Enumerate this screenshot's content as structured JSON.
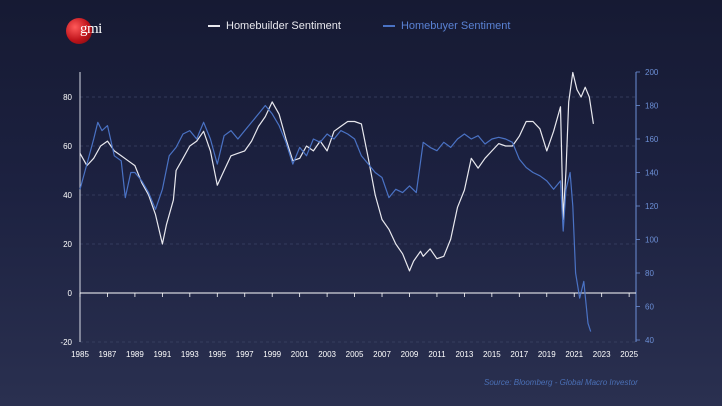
{
  "logo": {
    "text": "gmi"
  },
  "source": "Source: Bloomberg - Global Macro Investor",
  "colors": {
    "builder": "#e8e8ee",
    "buyer": "#4a72c4",
    "source": "#4a6fb5",
    "axis_left": "#ffffff",
    "axis_right": "#6c8fd6"
  },
  "chart_data": {
    "type": "line",
    "x_ticks": [
      "1985",
      "1987",
      "1989",
      "1991",
      "1993",
      "1995",
      "1997",
      "1999",
      "2001",
      "2003",
      "2005",
      "2007",
      "2009",
      "2011",
      "2013",
      "2015",
      "2017",
      "2019",
      "2021",
      "2023",
      "2025"
    ],
    "xlim": [
      1985,
      2025.5
    ],
    "y_left": {
      "ticks": [
        "80",
        "60",
        "40",
        "20",
        "0",
        "-20"
      ],
      "lim": [
        -20,
        90
      ]
    },
    "y_right": {
      "ticks": [
        "200",
        "180",
        "160",
        "140",
        "120",
        "100",
        "80",
        "60",
        "40"
      ],
      "lim": [
        40,
        200
      ]
    },
    "grid": "dashed horizontal at left-axis ticks",
    "series": [
      {
        "name": "Homebuilder Sentiment",
        "axis": "left",
        "points": [
          [
            1985,
            57
          ],
          [
            1985.5,
            52
          ],
          [
            1986,
            55
          ],
          [
            1986.5,
            60
          ],
          [
            1987,
            62
          ],
          [
            1987.5,
            58
          ],
          [
            1988,
            56
          ],
          [
            1988.5,
            54
          ],
          [
            1989,
            52
          ],
          [
            1989.5,
            45
          ],
          [
            1990,
            40
          ],
          [
            1990.5,
            32
          ],
          [
            1991,
            20
          ],
          [
            1991.3,
            28
          ],
          [
            1991.8,
            38
          ],
          [
            1992,
            50
          ],
          [
            1992.5,
            55
          ],
          [
            1993,
            60
          ],
          [
            1993.5,
            62
          ],
          [
            1994,
            66
          ],
          [
            1994.5,
            58
          ],
          [
            1995,
            44
          ],
          [
            1995.5,
            50
          ],
          [
            1996,
            56
          ],
          [
            1996.5,
            57
          ],
          [
            1997,
            58
          ],
          [
            1997.5,
            62
          ],
          [
            1998,
            68
          ],
          [
            1998.5,
            72
          ],
          [
            1999,
            78
          ],
          [
            1999.5,
            73
          ],
          [
            2000,
            63
          ],
          [
            2000.5,
            54
          ],
          [
            2001,
            55
          ],
          [
            2001.5,
            60
          ],
          [
            2002,
            58
          ],
          [
            2002.5,
            62
          ],
          [
            2003,
            58
          ],
          [
            2003.5,
            66
          ],
          [
            2004,
            68
          ],
          [
            2004.5,
            70
          ],
          [
            2005,
            70
          ],
          [
            2005.5,
            69
          ],
          [
            2006,
            55
          ],
          [
            2006.5,
            40
          ],
          [
            2007,
            30
          ],
          [
            2007.5,
            26
          ],
          [
            2008,
            20
          ],
          [
            2008.5,
            16
          ],
          [
            2009,
            9
          ],
          [
            2009.3,
            13
          ],
          [
            2009.8,
            17
          ],
          [
            2010,
            15
          ],
          [
            2010.5,
            18
          ],
          [
            2011,
            14
          ],
          [
            2011.5,
            15
          ],
          [
            2012,
            22
          ],
          [
            2012.5,
            35
          ],
          [
            2013,
            42
          ],
          [
            2013.5,
            55
          ],
          [
            2014,
            51
          ],
          [
            2014.5,
            55
          ],
          [
            2015,
            58
          ],
          [
            2015.5,
            61
          ],
          [
            2016,
            60
          ],
          [
            2016.5,
            60
          ],
          [
            2017,
            64
          ],
          [
            2017.5,
            70
          ],
          [
            2018,
            70
          ],
          [
            2018.5,
            67
          ],
          [
            2019,
            58
          ],
          [
            2019.5,
            66
          ],
          [
            2020,
            76
          ],
          [
            2020.2,
            30
          ],
          [
            2020.4,
            50
          ],
          [
            2020.6,
            78
          ],
          [
            2020.9,
            90
          ],
          [
            2021.2,
            83
          ],
          [
            2021.5,
            80
          ],
          [
            2021.8,
            84
          ],
          [
            2022.1,
            80
          ],
          [
            2022.4,
            69
          ]
        ]
      },
      {
        "name": "Homebuyer Sentiment",
        "axis": "right",
        "points": [
          [
            1985,
            130
          ],
          [
            1985.5,
            145
          ],
          [
            1986,
            160
          ],
          [
            1986.3,
            170
          ],
          [
            1986.6,
            165
          ],
          [
            1987,
            168
          ],
          [
            1987.5,
            150
          ],
          [
            1988,
            147
          ],
          [
            1988.3,
            125
          ],
          [
            1988.7,
            140
          ],
          [
            1989,
            140
          ],
          [
            1989.5,
            135
          ],
          [
            1990,
            128
          ],
          [
            1990.5,
            118
          ],
          [
            1991,
            130
          ],
          [
            1991.5,
            150
          ],
          [
            1992,
            155
          ],
          [
            1992.5,
            163
          ],
          [
            1993,
            165
          ],
          [
            1993.5,
            160
          ],
          [
            1994,
            170
          ],
          [
            1994.5,
            160
          ],
          [
            1995,
            145
          ],
          [
            1995.5,
            162
          ],
          [
            1996,
            165
          ],
          [
            1996.5,
            160
          ],
          [
            1997,
            165
          ],
          [
            1997.5,
            170
          ],
          [
            1998,
            175
          ],
          [
            1998.5,
            180
          ],
          [
            1999,
            175
          ],
          [
            1999.5,
            168
          ],
          [
            2000,
            158
          ],
          [
            2000.5,
            145
          ],
          [
            2001,
            155
          ],
          [
            2001.5,
            150
          ],
          [
            2002,
            160
          ],
          [
            2002.5,
            158
          ],
          [
            2003,
            163
          ],
          [
            2003.5,
            160
          ],
          [
            2004,
            165
          ],
          [
            2004.5,
            163
          ],
          [
            2005,
            160
          ],
          [
            2005.5,
            150
          ],
          [
            2006,
            145
          ],
          [
            2006.5,
            140
          ],
          [
            2007,
            137
          ],
          [
            2007.5,
            125
          ],
          [
            2008,
            130
          ],
          [
            2008.5,
            128
          ],
          [
            2009,
            132
          ],
          [
            2009.5,
            128
          ],
          [
            2010,
            158
          ],
          [
            2010.5,
            155
          ],
          [
            2011,
            153
          ],
          [
            2011.5,
            158
          ],
          [
            2012,
            155
          ],
          [
            2012.5,
            160
          ],
          [
            2013,
            163
          ],
          [
            2013.5,
            160
          ],
          [
            2014,
            162
          ],
          [
            2014.5,
            157
          ],
          [
            2015,
            160
          ],
          [
            2015.5,
            161
          ],
          [
            2016,
            160
          ],
          [
            2016.5,
            158
          ],
          [
            2017,
            148
          ],
          [
            2017.5,
            143
          ],
          [
            2018,
            140
          ],
          [
            2018.5,
            138
          ],
          [
            2019,
            135
          ],
          [
            2019.5,
            130
          ],
          [
            2020,
            135
          ],
          [
            2020.2,
            105
          ],
          [
            2020.4,
            130
          ],
          [
            2020.7,
            140
          ],
          [
            2020.9,
            120
          ],
          [
            2021.1,
            80
          ],
          [
            2021.4,
            65
          ],
          [
            2021.7,
            75
          ],
          [
            2022,
            50
          ],
          [
            2022.2,
            45
          ]
        ]
      }
    ]
  }
}
